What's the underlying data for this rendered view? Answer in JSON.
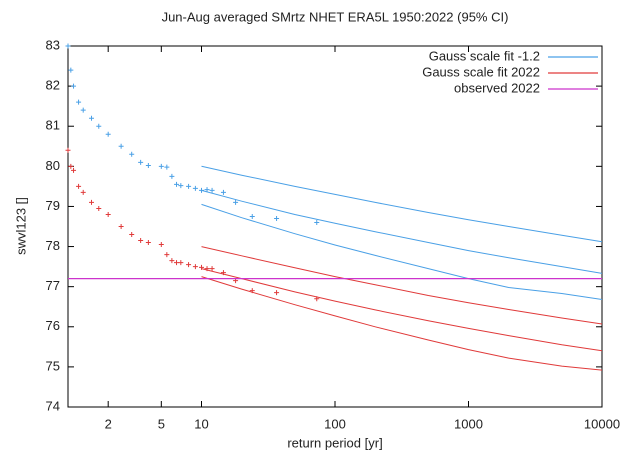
{
  "chart_data": {
    "type": "line",
    "title": "Jun-Aug averaged  SMrtz NHET ERA5L 1950:2022 (95% CI)",
    "x_label": "return period [yr]",
    "y_label": "swvl123 []",
    "xlog": true,
    "xlim": [
      1,
      10000
    ],
    "ylim": [
      74,
      83
    ],
    "xticks": [
      2,
      5,
      10,
      100,
      1000,
      10000
    ],
    "yticks": [
      74,
      75,
      76,
      77,
      78,
      79,
      80,
      81,
      82,
      83
    ],
    "legend": "top-right",
    "series": [
      {
        "name": "Gauss scale fit -1.2",
        "color": "#4aa0e6",
        "x": [
          10,
          20,
          50,
          100,
          200,
          500,
          1000,
          2000,
          5000,
          10000
        ],
        "values": [
          79.4,
          79.13,
          78.8,
          78.58,
          78.37,
          78.1,
          77.9,
          77.72,
          77.5,
          77.33
        ],
        "upper": [
          80.0,
          79.78,
          79.5,
          79.3,
          79.1,
          78.85,
          78.67,
          78.5,
          78.28,
          78.12
        ],
        "lower": [
          79.05,
          78.72,
          78.32,
          78.04,
          77.78,
          77.45,
          77.2,
          76.98,
          76.83,
          76.68
        ],
        "points": {
          "x": [
            1.0,
            1.05,
            1.1,
            1.2,
            1.3,
            1.5,
            1.7,
            2,
            2.5,
            3,
            3.5,
            4,
            5,
            5.5,
            6,
            6.5,
            7,
            8,
            9,
            10,
            11,
            12,
            14.6,
            18,
            24,
            36.5,
            73
          ],
          "y": [
            83.0,
            82.4,
            82.0,
            81.6,
            81.4,
            81.2,
            81.0,
            80.8,
            80.5,
            80.3,
            80.1,
            80.02,
            80.0,
            79.98,
            79.75,
            79.55,
            79.52,
            79.5,
            79.45,
            79.4,
            79.42,
            79.4,
            79.35,
            79.1,
            78.75,
            78.7,
            78.6
          ]
        }
      },
      {
        "name": "Gauss scale fit 2022",
        "color": "#e03a3a",
        "x": [
          10,
          20,
          50,
          100,
          200,
          500,
          1000,
          2000,
          5000,
          10000
        ],
        "values": [
          77.45,
          77.2,
          76.87,
          76.64,
          76.42,
          76.15,
          75.96,
          75.78,
          75.55,
          75.4
        ],
        "upper": [
          78.0,
          77.77,
          77.47,
          77.25,
          77.05,
          76.78,
          76.6,
          76.43,
          76.22,
          76.07
        ],
        "lower": [
          77.25,
          76.94,
          76.55,
          76.27,
          76.0,
          75.67,
          75.43,
          75.22,
          75.02,
          74.92
        ],
        "points": {
          "x": [
            1.0,
            1.05,
            1.1,
            1.2,
            1.3,
            1.5,
            1.7,
            2,
            2.5,
            3,
            3.5,
            4,
            5,
            5.5,
            6,
            6.5,
            7,
            8,
            9,
            10,
            11,
            12,
            14.6,
            18,
            24,
            36.5,
            73
          ],
          "y": [
            80.4,
            80.0,
            79.9,
            79.5,
            79.35,
            79.1,
            78.95,
            78.8,
            78.5,
            78.3,
            78.15,
            78.1,
            78.05,
            77.8,
            77.65,
            77.6,
            77.6,
            77.55,
            77.5,
            77.48,
            77.45,
            77.45,
            77.35,
            77.15,
            76.9,
            76.85,
            76.7
          ]
        }
      },
      {
        "name": "observed 2022",
        "color": "#cc33cc",
        "y": 77.2
      }
    ]
  }
}
